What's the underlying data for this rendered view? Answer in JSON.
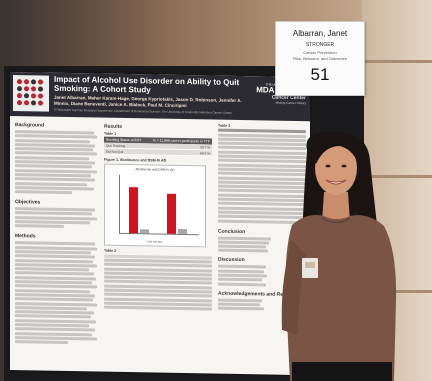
{
  "name_card": {
    "name": "Albarran, Janet",
    "section": "STRONGER",
    "category": "Cancer Prevention",
    "subcategory": "Risk, Behavior, and Outcomes",
    "number": "51"
  },
  "poster": {
    "title": "Impact of Alcohol Use Disorder on Ability to Quit Smoking: A Cohort Study",
    "authors": "Janet Albarran, Maher Karam-Hage, George Kypriotakis, Jason D. Robinson, Jennifer A. Minnix, Diane Beneventi, Janice A. Blalock, Paul M. Cinciripini",
    "affiliation": "STRONGER Summer Research Experience, Department of Behavioral Science, The University of Texas MD Anderson Cancer Center",
    "logo": {
      "university": "THE UNIVERSITY OF TEXAS",
      "name": "MDAnderson",
      "subname": "Cancer Center",
      "tagline": "Making Cancer History"
    },
    "sections": {
      "background": "Background",
      "objectives": "Objectives",
      "methods": "Methods",
      "results": "Results",
      "conclusion": "Conclusion",
      "discussion": "Discussion",
      "acknowledgements": "Acknowledgements and References"
    },
    "table1": {
      "caption": "Table 1",
      "header_left": "Smoking Status at EOT",
      "header_right": "% = 11,999 cancer participants in TTP",
      "rows": [
        {
          "label": "Quit Smoking",
          "value": "39.7 %"
        },
        {
          "label": "Did Not Quit",
          "value": "60.3 %"
        }
      ]
    },
    "table2": {
      "caption": "Table 2"
    },
    "table3": {
      "caption": "Table 3"
    },
    "figure1": {
      "caption": "Figure 1. Abstinence and DSM-IV AD",
      "chart_title": "Abstinence and DSM-IV AD",
      "legend": "Quit  Not Quit"
    }
  },
  "colors": {
    "poster_header": "#2c2b33",
    "bar_red": "#d3121b",
    "bar_grey": "#a7a7a7",
    "top_color": "#7a5546"
  }
}
